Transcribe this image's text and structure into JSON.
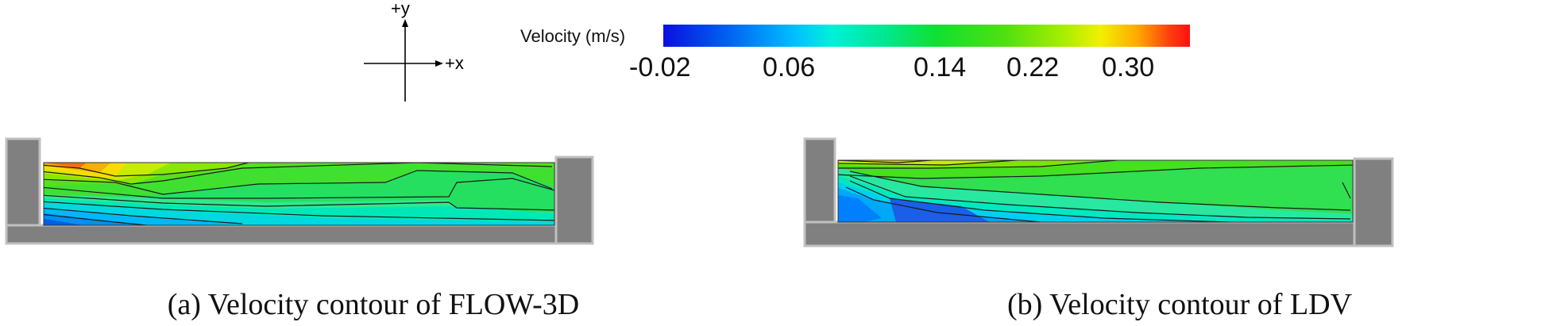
{
  "axes_indicator": {
    "y_label": "+y",
    "x_label": "+x"
  },
  "color_scale": {
    "title": "Velocity (m/s)",
    "ticks": [
      "-0.02",
      "0.06",
      "0.14",
      "0.22",
      "0.30"
    ],
    "colors": {
      "min": "#0a10e0",
      "low": "#00c0ff",
      "mid": "#10e030",
      "high": "#f0f000",
      "max": "#ff1010"
    }
  },
  "panels": [
    {
      "caption": "(a) Velocity contour of FLOW-3D"
    },
    {
      "caption": "(b) Velocity contour of LDV"
    }
  ],
  "colors": {
    "wall": "#808080",
    "wall_edge": "#b0b0b0",
    "contour_line": "#1a1a1a"
  }
}
